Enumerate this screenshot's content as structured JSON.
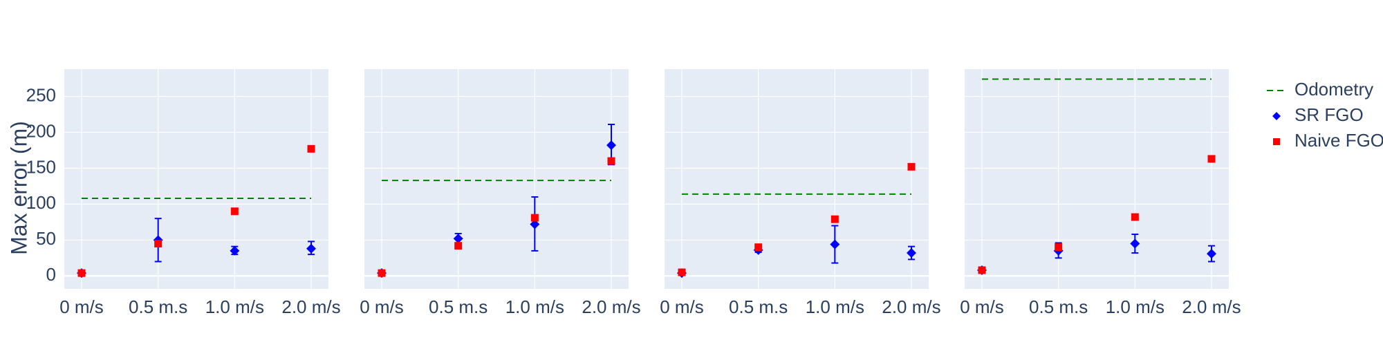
{
  "chart_data": {
    "type": "scatter",
    "ylabel": "Max error (m)",
    "ylim": [
      -18,
      288
    ],
    "yticks": [
      0,
      50,
      100,
      150,
      200,
      250
    ],
    "categories": [
      "0 m/s",
      "0.5 m.s",
      "1.0 m/s",
      "2.0 m/s"
    ],
    "colors": {
      "odometry": "#008000",
      "sr": "#0000ff",
      "naive": "#ff0000",
      "plot_bg": "#e5ecf6",
      "grid": "#ffffff",
      "text": "#2a3f5f"
    },
    "legend": {
      "position": "right",
      "entries": [
        "Odometry",
        "SR FGO",
        "Naive FGO"
      ]
    },
    "panels": [
      {
        "odometry": 108,
        "sr": [
          {
            "y": 4,
            "lo": 2,
            "hi": 6
          },
          {
            "y": 50,
            "lo": 20,
            "hi": 80
          },
          {
            "y": 35,
            "lo": 30,
            "hi": 41
          },
          {
            "y": 38,
            "lo": 30,
            "hi": 48
          }
        ],
        "naive": [
          4,
          45,
          90,
          177
        ]
      },
      {
        "odometry": 133,
        "sr": [
          {
            "y": 4,
            "lo": 2,
            "hi": 6
          },
          {
            "y": 52,
            "lo": 45,
            "hi": 59
          },
          {
            "y": 72,
            "lo": 35,
            "hi": 110
          },
          {
            "y": 182,
            "lo": 155,
            "hi": 211
          }
        ],
        "naive": [
          4,
          42,
          81,
          160
        ]
      },
      {
        "odometry": 114,
        "sr": [
          {
            "y": 4,
            "lo": 2,
            "hi": 6
          },
          {
            "y": 36,
            "lo": 33,
            "hi": 39
          },
          {
            "y": 44,
            "lo": 18,
            "hi": 70
          },
          {
            "y": 32,
            "lo": 23,
            "hi": 41
          }
        ],
        "naive": [
          5,
          40,
          79,
          152
        ]
      },
      {
        "odometry": 274,
        "sr": [
          {
            "y": 8,
            "lo": 5,
            "hi": 10
          },
          {
            "y": 35,
            "lo": 25,
            "hi": 46
          },
          {
            "y": 45,
            "lo": 32,
            "hi": 58
          },
          {
            "y": 31,
            "lo": 20,
            "hi": 42
          }
        ],
        "naive": [
          8,
          40,
          82,
          163
        ]
      }
    ]
  }
}
